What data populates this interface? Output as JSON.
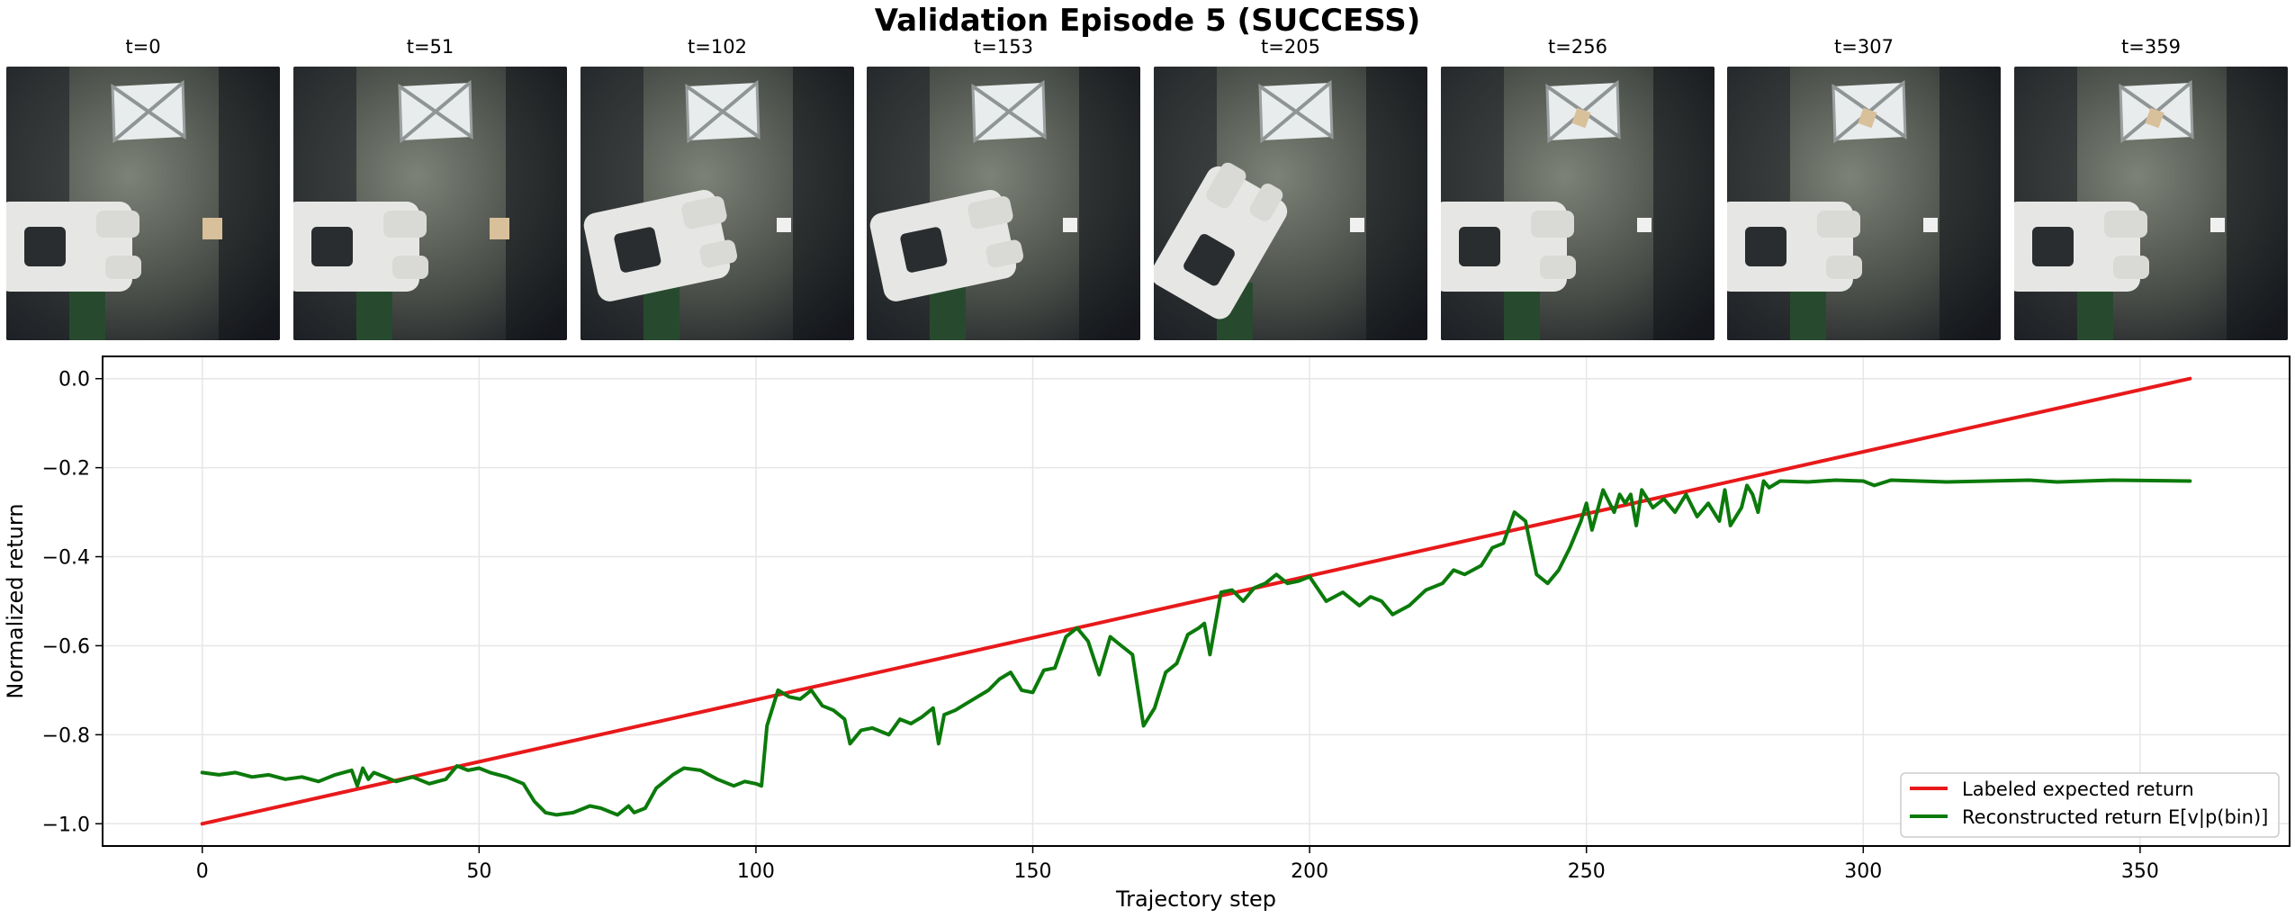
{
  "title": "Validation Episode 5 (SUCCESS)",
  "frames": [
    {
      "label": "t=0",
      "block": "table"
    },
    {
      "label": "t=51",
      "block": "table"
    },
    {
      "label": "t=102",
      "block": "gripper"
    },
    {
      "label": "t=153",
      "block": "gripper"
    },
    {
      "label": "t=205",
      "block": "gripper"
    },
    {
      "label": "t=256",
      "block": "target"
    },
    {
      "label": "t=307",
      "block": "target"
    },
    {
      "label": "t=359",
      "block": "target"
    }
  ],
  "colors": {
    "labeled": "#e8191b",
    "reconstructed": "#0b7a0b",
    "grid": "#e6e6e6"
  },
  "chart_data": {
    "type": "line",
    "title": "",
    "xlabel": "Trajectory step",
    "ylabel": "Normalized return",
    "xlim": [
      -18,
      377
    ],
    "ylim": [
      -1.05,
      0.05
    ],
    "xticks": [
      0,
      50,
      100,
      150,
      200,
      250,
      300,
      350
    ],
    "yticks": [
      0.0,
      -0.2,
      -0.4,
      -0.6,
      -0.8,
      -1.0
    ],
    "xtick_labels": [
      "0",
      "50",
      "100",
      "150",
      "200",
      "250",
      "300",
      "350"
    ],
    "ytick_labels": [
      "0.0",
      "−0.2",
      "−0.4",
      "−0.6",
      "−0.8",
      "−1.0"
    ],
    "grid": true,
    "legend": "lower-right",
    "series": [
      {
        "name": "Labeled expected return",
        "x": [
          0,
          359
        ],
        "y": [
          -1.0,
          0.0
        ]
      },
      {
        "name": "Reconstructed return E[v|p(bin)]",
        "x": [
          0,
          3,
          6,
          9,
          12,
          15,
          18,
          21,
          24,
          27,
          28,
          29,
          30,
          31,
          32,
          35,
          38,
          41,
          44,
          46,
          48,
          50,
          52,
          55,
          58,
          60,
          62,
          64,
          67,
          70,
          72,
          75,
          77,
          78,
          80,
          82,
          85,
          87,
          90,
          93,
          96,
          98,
          100,
          101,
          102,
          104,
          106,
          108,
          110,
          112,
          114,
          116,
          117,
          119,
          121,
          124,
          126,
          128,
          130,
          132,
          133,
          134,
          136,
          138,
          140,
          142,
          144,
          146,
          148,
          150,
          152,
          154,
          156,
          158,
          160,
          162,
          164,
          166,
          168,
          170,
          172,
          174,
          176,
          178,
          180,
          181,
          182,
          184,
          186,
          188,
          190,
          192,
          194,
          196,
          198,
          200,
          203,
          206,
          209,
          211,
          213,
          215,
          218,
          221,
          224,
          226,
          228,
          231,
          233,
          235,
          237,
          239,
          241,
          243,
          245,
          247,
          249,
          250,
          251,
          253,
          255,
          256,
          257,
          258,
          259,
          260,
          262,
          264,
          266,
          268,
          270,
          272,
          274,
          275,
          276,
          278,
          279,
          280,
          281,
          282,
          283,
          285,
          290,
          295,
          300,
          302,
          305,
          315,
          330,
          335,
          345,
          359
        ],
        "y": [
          -0.885,
          -0.89,
          -0.885,
          -0.895,
          -0.89,
          -0.9,
          -0.895,
          -0.905,
          -0.89,
          -0.88,
          -0.915,
          -0.875,
          -0.9,
          -0.885,
          -0.89,
          -0.905,
          -0.895,
          -0.91,
          -0.9,
          -0.87,
          -0.88,
          -0.875,
          -0.885,
          -0.895,
          -0.91,
          -0.95,
          -0.975,
          -0.98,
          -0.975,
          -0.96,
          -0.965,
          -0.98,
          -0.96,
          -0.975,
          -0.965,
          -0.92,
          -0.89,
          -0.875,
          -0.88,
          -0.9,
          -0.915,
          -0.905,
          -0.91,
          -0.915,
          -0.78,
          -0.7,
          -0.715,
          -0.72,
          -0.7,
          -0.735,
          -0.745,
          -0.765,
          -0.82,
          -0.79,
          -0.785,
          -0.8,
          -0.765,
          -0.775,
          -0.76,
          -0.74,
          -0.82,
          -0.755,
          -0.745,
          -0.73,
          -0.715,
          -0.7,
          -0.675,
          -0.66,
          -0.7,
          -0.705,
          -0.655,
          -0.65,
          -0.58,
          -0.56,
          -0.59,
          -0.665,
          -0.58,
          -0.6,
          -0.62,
          -0.78,
          -0.74,
          -0.66,
          -0.64,
          -0.575,
          -0.56,
          -0.55,
          -0.62,
          -0.48,
          -0.475,
          -0.5,
          -0.47,
          -0.46,
          -0.44,
          -0.46,
          -0.455,
          -0.445,
          -0.5,
          -0.48,
          -0.51,
          -0.49,
          -0.5,
          -0.53,
          -0.51,
          -0.475,
          -0.46,
          -0.43,
          -0.44,
          -0.42,
          -0.38,
          -0.37,
          -0.3,
          -0.32,
          -0.44,
          -0.46,
          -0.43,
          -0.38,
          -0.32,
          -0.28,
          -0.34,
          -0.25,
          -0.3,
          -0.26,
          -0.28,
          -0.26,
          -0.33,
          -0.25,
          -0.29,
          -0.27,
          -0.3,
          -0.26,
          -0.31,
          -0.28,
          -0.32,
          -0.25,
          -0.33,
          -0.29,
          -0.24,
          -0.26,
          -0.3,
          -0.23,
          -0.245,
          -0.23,
          -0.232,
          -0.228,
          -0.23,
          -0.24,
          -0.228,
          -0.232,
          -0.228,
          -0.232,
          -0.228,
          -0.23
        ]
      }
    ]
  }
}
